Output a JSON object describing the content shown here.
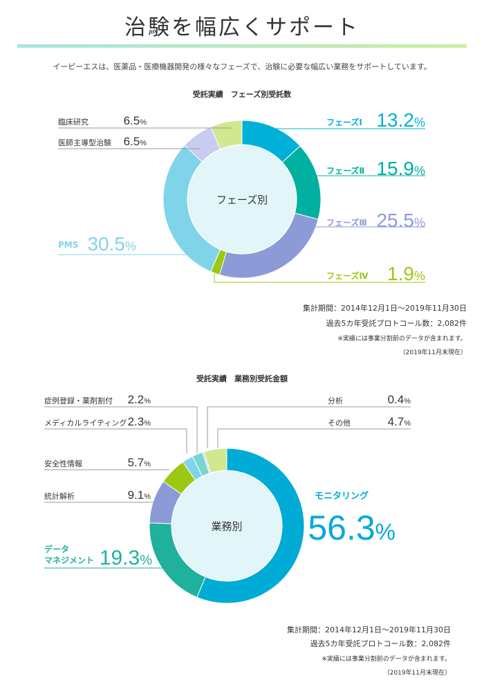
{
  "title": "治験を幅広くサポート",
  "intro": "イーピーエスは、医薬品・医療機器開発の様々なフェーズで、治験に必要な幅広い業務をサポートしています。",
  "colors": {
    "phase1": "#00b0d8",
    "phase2": "#00b0a0",
    "phase3": "#8c9ad8",
    "phase4": "#9cc814",
    "pms": "#7fd4ea",
    "doctor": "#c8ccee",
    "clinical": "#d0e890",
    "center": "#e2f5f8",
    "monitoring": "#00abd6",
    "data_mgmt": "#1fb19c",
    "stats": "#8c9ad8",
    "safety": "#9cc814",
    "writing": "#7fd4ea",
    "registry": "#78d6cf",
    "analysis": "#cfd4ef",
    "other": "#d0e890"
  },
  "chart_data": [
    {
      "type": "pie",
      "title": "受託実績　フェーズ別受託数",
      "center_label": "フェーズ別",
      "slices": [
        {
          "name": "フェーズⅠ",
          "value": 13.2,
          "label": "13.2%",
          "color": "#00b0d8"
        },
        {
          "name": "フェーズⅡ",
          "value": 15.9,
          "label": "15.9%",
          "color": "#00b0a0"
        },
        {
          "name": "フェーズⅢ",
          "value": 25.5,
          "label": "25.5%",
          "color": "#8c9ad8"
        },
        {
          "name": "フェーズⅣ",
          "value": 1.9,
          "label": "1.9%",
          "color": "#9cc814"
        },
        {
          "name": "PMS",
          "value": 30.5,
          "label": "30.5%",
          "color": "#7fd4ea"
        },
        {
          "name": "医師主導型治験",
          "value": 6.5,
          "label": "6.5%",
          "color": "#c8ccee"
        },
        {
          "name": "臨床研究",
          "value": 6.5,
          "label": "6.5%",
          "color": "#d0e890"
        }
      ],
      "notes": [
        "集計期間：2014年12月1日～2019年11月30日",
        "過去5カ年受託プロトコール数：2,082件",
        "※実績には事業分割前のデータが含まれます。",
        "（2019年11月末現在）"
      ]
    },
    {
      "type": "pie",
      "title": "受託実績　業務別受託金額",
      "center_label": "業務別",
      "slices": [
        {
          "name": "モニタリング",
          "value": 56.3,
          "label": "56.3%",
          "color": "#00abd6"
        },
        {
          "name": "データマネジメント",
          "value": 19.3,
          "label": "19.3%",
          "color": "#1fb19c"
        },
        {
          "name": "統計解析",
          "value": 9.1,
          "label": "9.1%",
          "color": "#8c9ad8"
        },
        {
          "name": "安全性情報",
          "value": 5.7,
          "label": "5.7%",
          "color": "#9cc814"
        },
        {
          "name": "メディカルライティング",
          "value": 2.3,
          "label": "2.3%",
          "color": "#7fd4ea"
        },
        {
          "name": "症例登録・薬剤割付",
          "value": 2.2,
          "label": "2.2%",
          "color": "#78d6cf"
        },
        {
          "name": "分析",
          "value": 0.4,
          "label": "0.4%",
          "color": "#cfd4ef"
        },
        {
          "name": "その他",
          "value": 4.7,
          "label": "4.7%",
          "color": "#d0e890"
        }
      ],
      "notes": [
        "集計期間：2014年12月1日～2019年11月30日",
        "過去5カ年受託プロトコール数：2,082件",
        "※実績には事業分割前のデータが含まれます。",
        "（2019年11月末現在）"
      ]
    }
  ]
}
